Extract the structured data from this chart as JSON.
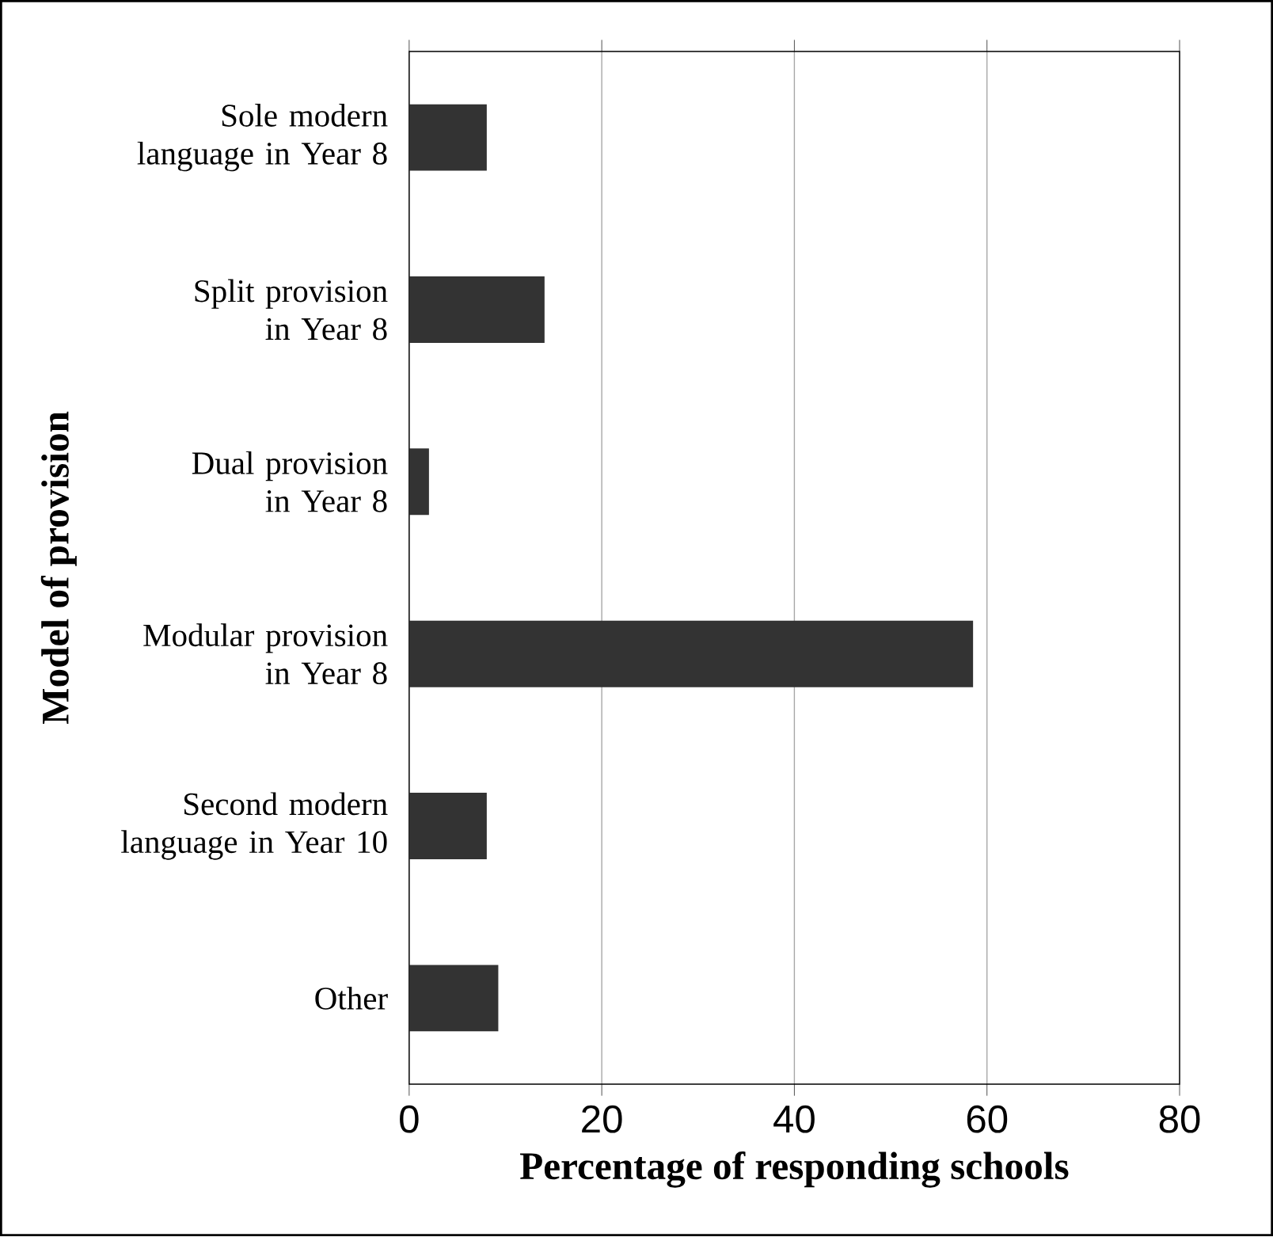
{
  "chart_data": {
    "type": "bar",
    "orientation": "horizontal",
    "categories": [
      "Sole modern language in Year 8",
      "Split provision in Year 8",
      "Dual provision in Year 8",
      "Modular provision in Year 8",
      "Second modern language in Year 10",
      "Other"
    ],
    "values": [
      8,
      14,
      2,
      58.5,
      8,
      9.2
    ],
    "color": "#333333",
    "xlim": [
      0,
      80
    ],
    "xticks": [
      0,
      20,
      40,
      60,
      80
    ],
    "grid": "x",
    "xlabel": "Percentage of responding schools",
    "ylabel": "Model of provision"
  }
}
